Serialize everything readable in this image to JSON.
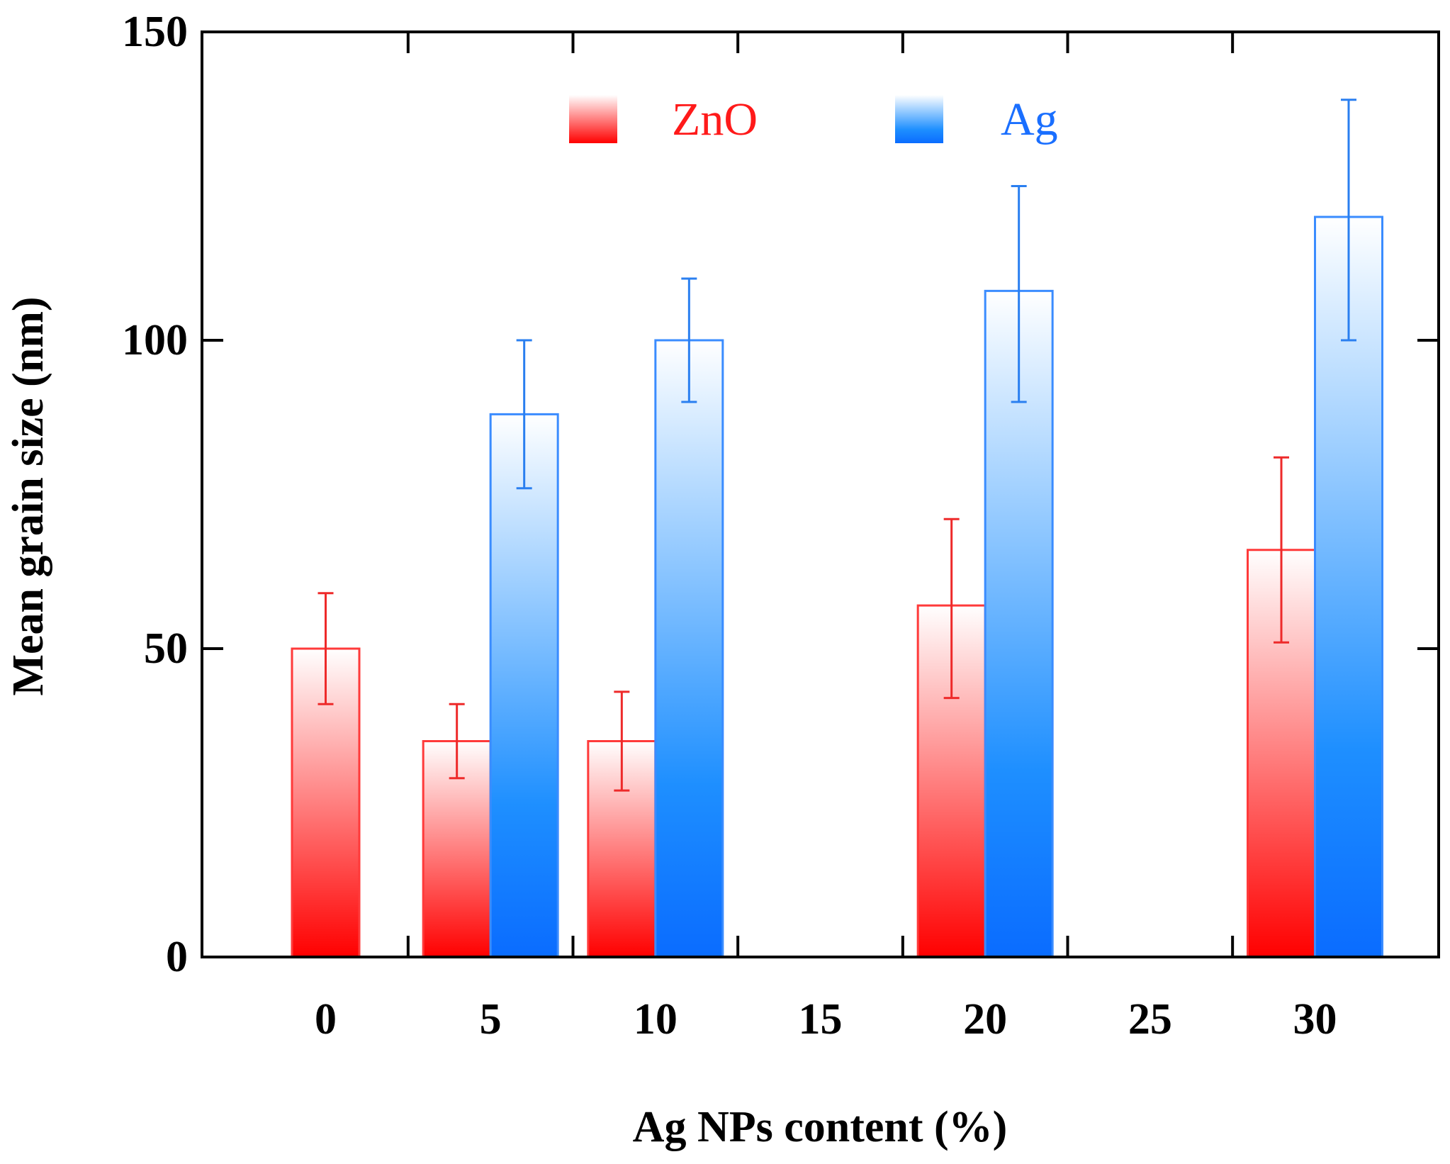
{
  "chart_data": {
    "type": "bar",
    "title": "",
    "xlabel": "Ag NPs content (%)",
    "ylabel": "Mean grain size (nm)",
    "ylim": [
      0,
      150
    ],
    "yticks": [
      0,
      50,
      100,
      150
    ],
    "xlim": [
      -3.75,
      33.75
    ],
    "xticks": [
      0,
      5,
      10,
      15,
      20,
      25,
      30
    ],
    "legend_position": "top-center",
    "series": [
      {
        "name": "ZnO",
        "color": "#ff1a1a",
        "points": [
          {
            "x": 0,
            "value": 50,
            "err_low": 41,
            "err_high": 59
          },
          {
            "x": 5,
            "value": 35,
            "err_low": 29,
            "err_high": 41
          },
          {
            "x": 10,
            "value": 35,
            "err_low": 27,
            "err_high": 43
          },
          {
            "x": 20,
            "value": 57,
            "err_low": 42,
            "err_high": 71
          },
          {
            "x": 30,
            "value": 66,
            "err_low": 51,
            "err_high": 81
          }
        ]
      },
      {
        "name": "Ag",
        "color": "#1a6fff",
        "points": [
          {
            "x": 5,
            "value": 88,
            "err_low": 76,
            "err_high": 100
          },
          {
            "x": 10,
            "value": 100,
            "err_low": 90,
            "err_high": 110
          },
          {
            "x": 20,
            "value": 108,
            "err_low": 90,
            "err_high": 125
          },
          {
            "x": 30,
            "value": 120,
            "err_low": 100,
            "err_high": 139
          }
        ]
      }
    ]
  }
}
